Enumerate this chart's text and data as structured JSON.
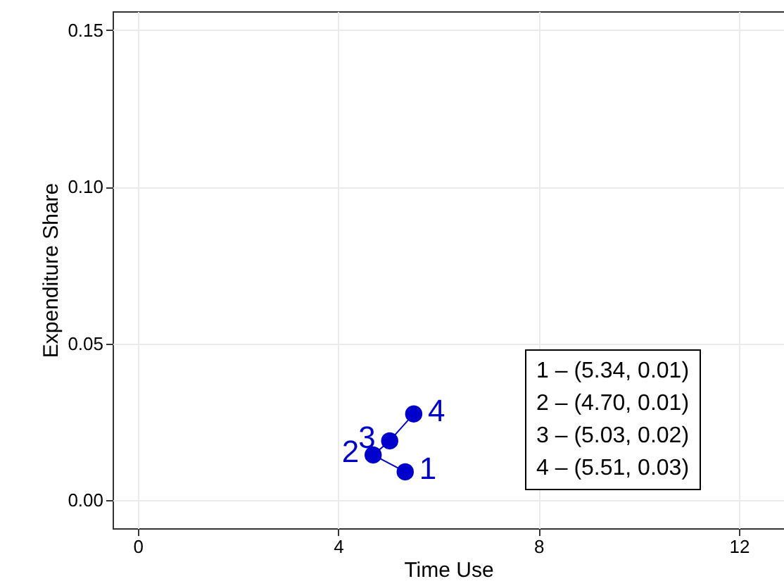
{
  "chart_data": {
    "type": "line",
    "xlabel": "Time Use",
    "ylabel": "Expenditure Share",
    "x": [
      5.34,
      4.7,
      5.03,
      5.51
    ],
    "series": [
      {
        "color": "#0000cc",
        "values": [
          0.009,
          0.0144,
          0.0189,
          0.0275
        ]
      }
    ],
    "marker": "circle",
    "xlim": [
      -0.5,
      12.9
    ],
    "ylim": [
      -0.009,
      0.156
    ],
    "xticks": [
      0,
      4,
      8,
      12
    ],
    "yticks": [
      {
        "value": 0,
        "label": "0.00"
      },
      {
        "value": 0.05,
        "label": "0.05"
      },
      {
        "value": 0.1,
        "label": "0.10"
      },
      {
        "value": 0.15,
        "label": "0.15"
      }
    ],
    "grid": true,
    "annotations": [
      {
        "text": "1",
        "x": 5.34,
        "y": 0.009
      },
      {
        "text": "2",
        "x": 4.7,
        "y": 0.0144
      },
      {
        "text": "3",
        "x": 5.03,
        "y": 0.0189
      },
      {
        "text": "4",
        "x": 5.51,
        "y": 0.0275
      },
      "1 – (5.34, 0.01)",
      "2 – (4.70, 0.01)",
      "3 – (5.03, 0.02)",
      "4 – (5.51, 0.03)"
    ]
  }
}
